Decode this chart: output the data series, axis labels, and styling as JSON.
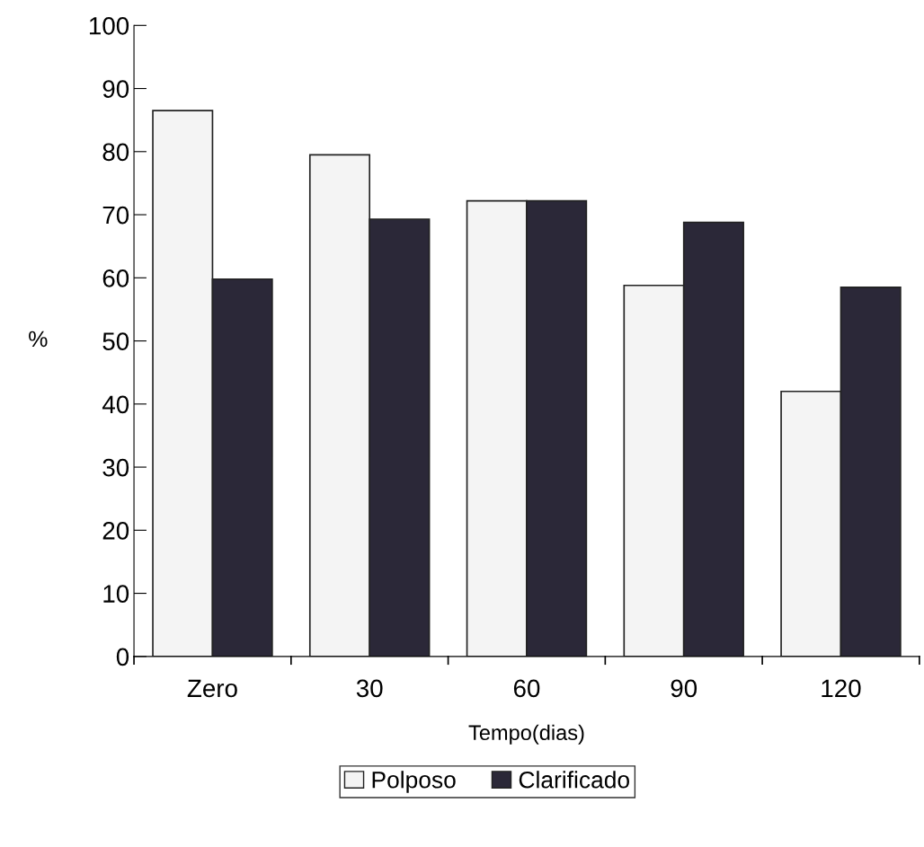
{
  "chart_data": {
    "type": "bar",
    "xlabel": "Tempo(dias)",
    "ylabel": "%",
    "categories": [
      "Zero",
      "30",
      "60",
      "90",
      "120"
    ],
    "series": [
      {
        "name": "Polposo",
        "color": "#f4f4f4",
        "values": [
          86.5,
          79.5,
          72.2,
          58.8,
          42
        ]
      },
      {
        "name": "Clarificado",
        "color": "#2b2838",
        "values": [
          59.8,
          69.3,
          72.2,
          68.8,
          58.5
        ]
      }
    ],
    "ylim": [
      0,
      100
    ],
    "yticks": [
      0,
      10,
      20,
      30,
      40,
      50,
      60,
      70,
      80,
      90,
      100
    ],
    "grid": false,
    "legend": "bottom"
  }
}
